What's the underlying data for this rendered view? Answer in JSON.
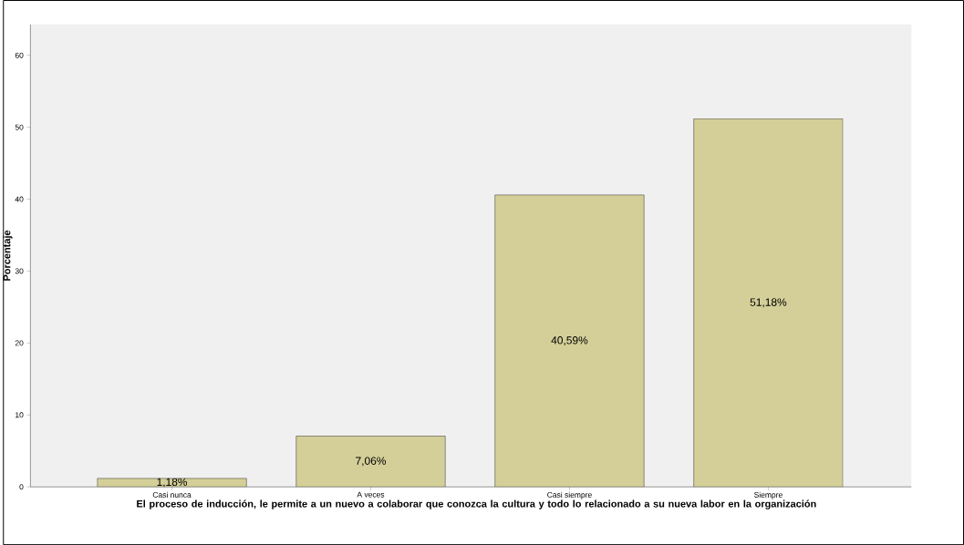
{
  "chart_data": {
    "type": "bar",
    "xlabel": "El proceso de inducción, le permite a un nuevo a colaborar que conozca la cultura y todo lo relacionado a su nueva labor en la organización",
    "ylabel": "Porcentaje",
    "categories": [
      "Casi nunca",
      "A veces",
      "Casi siempre",
      "Siempre"
    ],
    "values": [
      1.18,
      7.06,
      40.59,
      51.18
    ],
    "value_labels": [
      "1,18%",
      "7,06%",
      "40,59%",
      "51,18%"
    ],
    "color": "#d4cf98",
    "ylim": [
      0,
      64.3
    ],
    "yticks": [
      0,
      10,
      20,
      30,
      40,
      50,
      60
    ]
  }
}
